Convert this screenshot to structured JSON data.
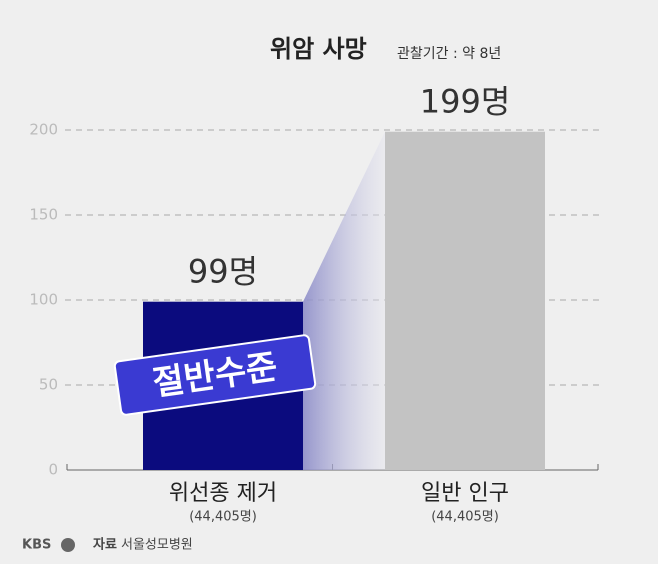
{
  "chart_data": {
    "type": "bar",
    "title": "위암 사망",
    "subtitle": "관찰기간 : 약 8년",
    "categories": [
      "위선종 제거",
      "일반 인구"
    ],
    "category_notes": [
      "(44,405명)",
      "(44,405명)"
    ],
    "values": [
      99,
      199
    ],
    "value_labels": [
      "99명",
      "199명"
    ],
    "colors": [
      "#0b0b7e",
      "#c3c3c3"
    ],
    "ylim": [
      0,
      200
    ],
    "yticks": [
      0,
      50,
      100,
      150,
      200
    ],
    "grid": true,
    "annotation": "절반수준"
  },
  "footer": {
    "logo": "KBS",
    "source_label": "자료",
    "source": "서울성모병원"
  }
}
